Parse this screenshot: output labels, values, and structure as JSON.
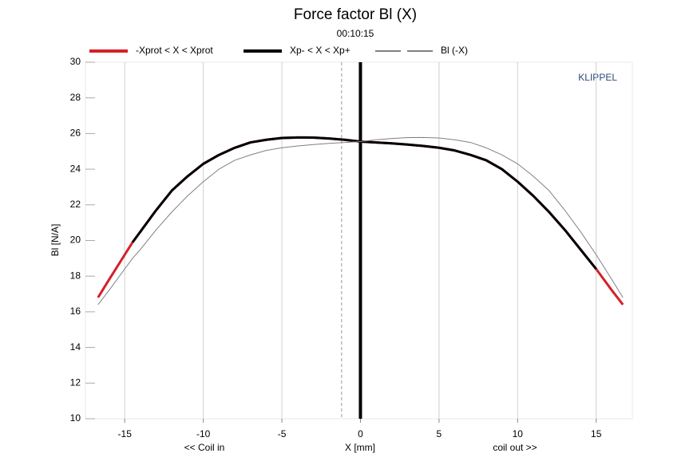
{
  "chart_data": {
    "type": "line",
    "title": "Force factor Bl (X)",
    "subtitle": "00:10:15",
    "x_label": "X [mm]",
    "y_label": "Bl [N/A]",
    "annotations": [
      "<< Coil in",
      "coil out >>",
      "KLIPPEL"
    ],
    "x": [
      -16.7,
      -16,
      -15,
      -14.5,
      -14,
      -13,
      -12,
      -11,
      -10,
      -9,
      -8,
      -7,
      -6,
      -5,
      -4,
      -3,
      -2,
      -1,
      0,
      1,
      2,
      3,
      4,
      5,
      6,
      7,
      8,
      9,
      10,
      11,
      12,
      13,
      14,
      15,
      16,
      16.7
    ],
    "series": [
      {
        "name": "-Xprot < X < Xprot",
        "color": "#d42027",
        "width": 3,
        "values": [
          16.8,
          17.8,
          19.2,
          19.9,
          20.5,
          21.7,
          22.8,
          23.6,
          24.3,
          24.8,
          25.2,
          25.5,
          25.65,
          25.75,
          25.78,
          25.77,
          25.72,
          25.65,
          25.55,
          25.5,
          25.45,
          25.38,
          25.3,
          25.2,
          25.05,
          24.8,
          24.5,
          24.0,
          23.3,
          22.5,
          21.6,
          20.6,
          19.5,
          18.4,
          17.2,
          16.4
        ]
      },
      {
        "name": "Xp- < X < Xp+",
        "color": "#000000",
        "width": 3,
        "values": [
          null,
          null,
          null,
          19.9,
          20.5,
          21.7,
          22.8,
          23.6,
          24.3,
          24.8,
          25.2,
          25.5,
          25.65,
          25.75,
          25.78,
          25.77,
          25.72,
          25.65,
          25.55,
          25.5,
          25.45,
          25.38,
          25.3,
          25.2,
          25.05,
          24.8,
          24.5,
          24.0,
          23.3,
          22.5,
          21.6,
          20.6,
          19.5,
          18.4,
          null,
          null
        ]
      },
      {
        "name": "Bl (-X)",
        "color": "#808080",
        "width": 1,
        "values": [
          16.4,
          17.2,
          18.4,
          19.0,
          19.5,
          20.6,
          21.6,
          22.5,
          23.3,
          24.0,
          24.5,
          24.8,
          25.05,
          25.2,
          25.3,
          25.38,
          25.45,
          25.5,
          25.55,
          25.65,
          25.72,
          25.77,
          25.78,
          25.75,
          25.65,
          25.5,
          25.2,
          24.8,
          24.3,
          23.6,
          22.8,
          21.7,
          20.5,
          19.2,
          17.8,
          16.8
        ]
      }
    ],
    "vlines": [
      {
        "x": 0,
        "style": "solid"
      },
      {
        "x": -1.2,
        "style": "dashed"
      }
    ],
    "xlim": [
      -17.5,
      17.3
    ],
    "ylim": [
      10,
      30
    ],
    "xticks": [
      -15,
      -10,
      -5,
      0,
      5,
      10,
      15
    ],
    "yticks": [
      10,
      12,
      14,
      16,
      18,
      20,
      22,
      24,
      26,
      28,
      30
    ],
    "grid": true
  }
}
